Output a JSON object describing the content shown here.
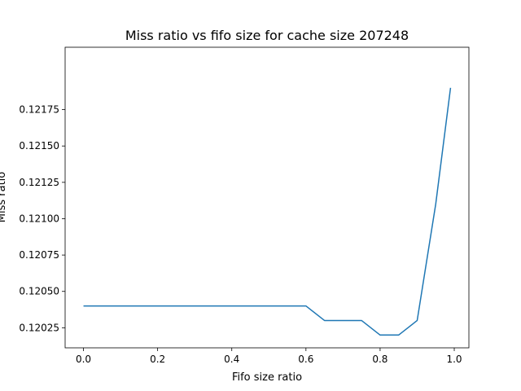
{
  "chart_data": {
    "type": "line",
    "title": "Miss ratio vs fifo size for cache size 207248",
    "xlabel": "Fifo size ratio",
    "ylabel": "Miss ratio",
    "xlim": [
      -0.0495,
      1.0395
    ],
    "ylim": [
      0.120112,
      0.122179
    ],
    "xticks": [
      0.0,
      0.2,
      0.4,
      0.6,
      0.8,
      1.0
    ],
    "xtick_labels": [
      "0.0",
      "0.2",
      "0.4",
      "0.6",
      "0.8",
      "1.0"
    ],
    "yticks": [
      0.12025,
      0.1205,
      0.12075,
      0.121,
      0.12125,
      0.1215,
      0.12175
    ],
    "ytick_labels": [
      "0.12025",
      "0.12050",
      "0.12075",
      "0.12100",
      "0.12125",
      "0.12150",
      "0.12175"
    ],
    "grid": false,
    "series": [
      {
        "color": "#1f77b4",
        "x": [
          0.0,
          0.05,
          0.1,
          0.15,
          0.2,
          0.25,
          0.3,
          0.35,
          0.4,
          0.45,
          0.5,
          0.55,
          0.6,
          0.65,
          0.7,
          0.75,
          0.8,
          0.85,
          0.9,
          0.95,
          0.99
        ],
        "y": [
          0.1204,
          0.1204,
          0.1204,
          0.1204,
          0.1204,
          0.1204,
          0.1204,
          0.1204,
          0.1204,
          0.1204,
          0.1204,
          0.1204,
          0.1204,
          0.1203,
          0.1203,
          0.1203,
          0.1202,
          0.1202,
          0.1203,
          0.1211,
          0.1219
        ]
      }
    ]
  }
}
